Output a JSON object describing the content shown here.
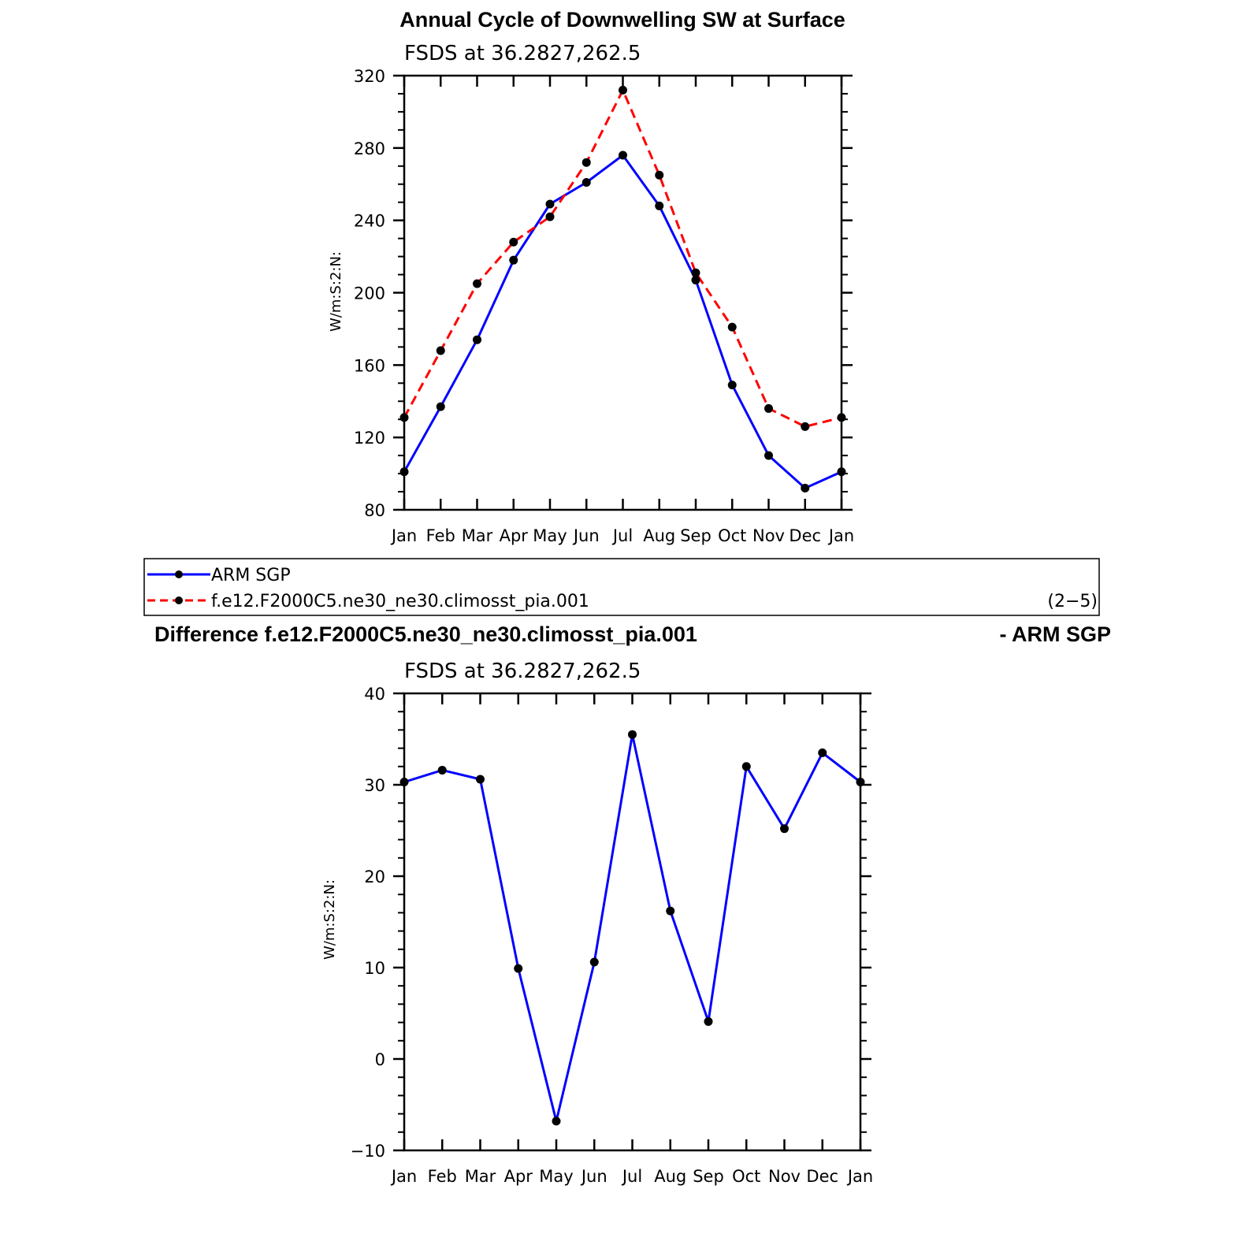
{
  "top": {
    "title": "Annual Cycle of Downwelling SW at Surface",
    "subtitle": "FSDS at 36.2827,262.5",
    "ylabel": "W/m:S:2:N:"
  },
  "legend": {
    "entries": [
      "ARM SGP",
      "f.e12.F2000C5.ne30_ne30.climosst_pia.001"
    ],
    "index": "(2−5)"
  },
  "bottom": {
    "title_left": "Difference f.e12.F2000C5.ne30_ne30.climosst_pia.001",
    "title_right": "- ARM SGP",
    "subtitle": "FSDS at 36.2827,262.5",
    "ylabel": "W/m:S:2:N:"
  },
  "chart_data": [
    {
      "type": "line",
      "title": "Annual Cycle of Downwelling SW at Surface",
      "subtitle": "FSDS at 36.2827,262.5",
      "xlabel": "",
      "ylabel": "W/m:S:2:N:",
      "categories": [
        "Jan",
        "Feb",
        "Mar",
        "Apr",
        "May",
        "Jun",
        "Jul",
        "Aug",
        "Sep",
        "Oct",
        "Nov",
        "Dec",
        "Jan"
      ],
      "ylim": [
        80,
        320
      ],
      "yticks": [
        "320",
        "280",
        "240",
        "200",
        "160",
        "120",
        "80"
      ],
      "series": [
        {
          "name": "ARM SGP",
          "color": "#0000ff",
          "dash": "solid",
          "values": [
            101,
            137,
            174,
            218,
            249,
            261,
            276,
            248,
            207,
            149,
            110,
            92,
            101
          ]
        },
        {
          "name": "f.e12.F2000C5.ne30_ne30.climosst_pia.001",
          "color": "#ff0000",
          "dash": "dashed",
          "values": [
            131,
            168,
            205,
            228,
            242,
            272,
            312,
            265,
            211,
            181,
            136,
            126,
            131
          ]
        }
      ]
    },
    {
      "type": "line",
      "title": "Difference f.e12.F2000C5.ne30_ne30.climosst_pia.001 - ARM SGP",
      "subtitle": "FSDS at 36.2827,262.5",
      "xlabel": "",
      "ylabel": "W/m:S:2:N:",
      "categories": [
        "Jan",
        "Feb",
        "Mar",
        "Apr",
        "May",
        "Jun",
        "Jul",
        "Aug",
        "Sep",
        "Oct",
        "Nov",
        "Dec",
        "Jan"
      ],
      "ylim": [
        -10,
        40
      ],
      "yticks": [
        "40",
        "30",
        "20",
        "10",
        "0",
        "−10"
      ],
      "series": [
        {
          "color": "#0000ff",
          "dash": "solid",
          "values": [
            30.3,
            31.6,
            30.6,
            9.9,
            -6.8,
            10.6,
            35.5,
            16.2,
            4.1,
            32.0,
            25.2,
            33.5,
            30.3
          ]
        }
      ]
    }
  ]
}
